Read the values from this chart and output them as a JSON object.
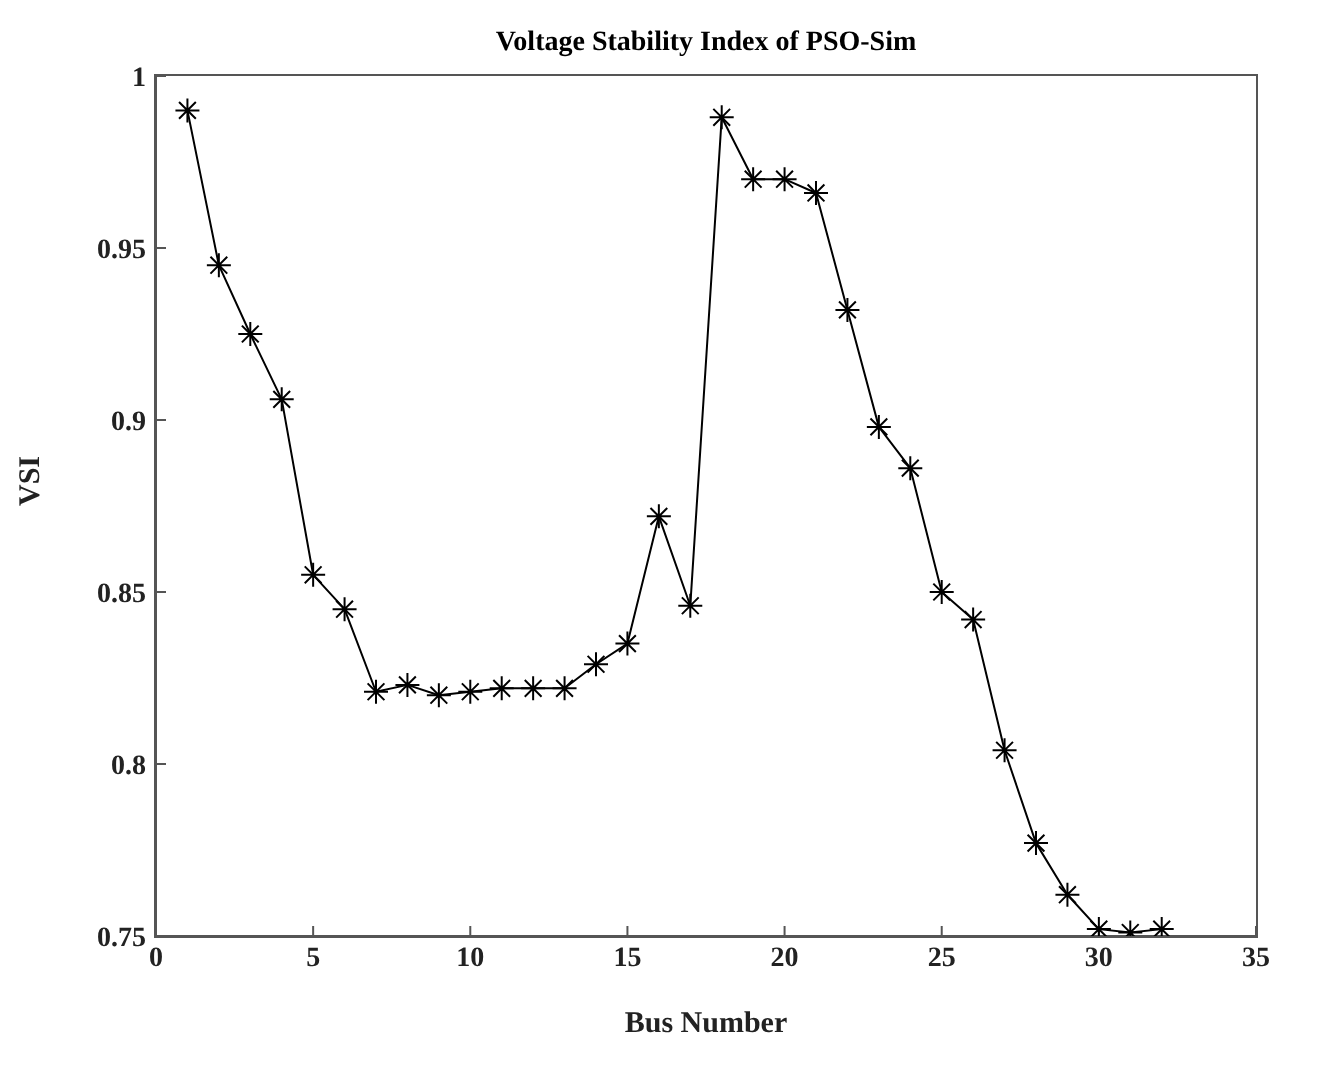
{
  "chart_data": {
    "type": "line",
    "title": "Voltage Stability Index of PSO-Sim",
    "xlabel": "Bus Number",
    "ylabel": "VSI",
    "x": [
      1,
      2,
      3,
      4,
      5,
      6,
      7,
      8,
      9,
      10,
      11,
      12,
      13,
      14,
      15,
      16,
      17,
      18,
      19,
      20,
      21,
      22,
      23,
      24,
      25,
      26,
      27,
      28,
      29,
      30,
      31,
      32
    ],
    "series": [
      {
        "color": "#000000",
        "values": [
          0.99,
          0.945,
          0.925,
          0.906,
          0.855,
          0.845,
          0.821,
          0.823,
          0.82,
          0.821,
          0.822,
          0.822,
          0.822,
          0.829,
          0.835,
          0.872,
          0.846,
          0.988,
          0.97,
          0.97,
          0.966,
          0.932,
          0.898,
          0.886,
          0.85,
          0.842,
          0.804,
          0.777,
          0.762,
          0.752,
          0.751,
          0.752
        ]
      }
    ],
    "xlim": [
      0,
      35
    ],
    "xticks": [
      0,
      5,
      10,
      15,
      20,
      25,
      30,
      35
    ],
    "ylim": [
      0.75,
      1
    ],
    "yticks": [
      0.75,
      0.8,
      0.85,
      0.9,
      0.95,
      1
    ],
    "grid": false,
    "legend": false,
    "marker": "cross",
    "line_style": "solid"
  }
}
